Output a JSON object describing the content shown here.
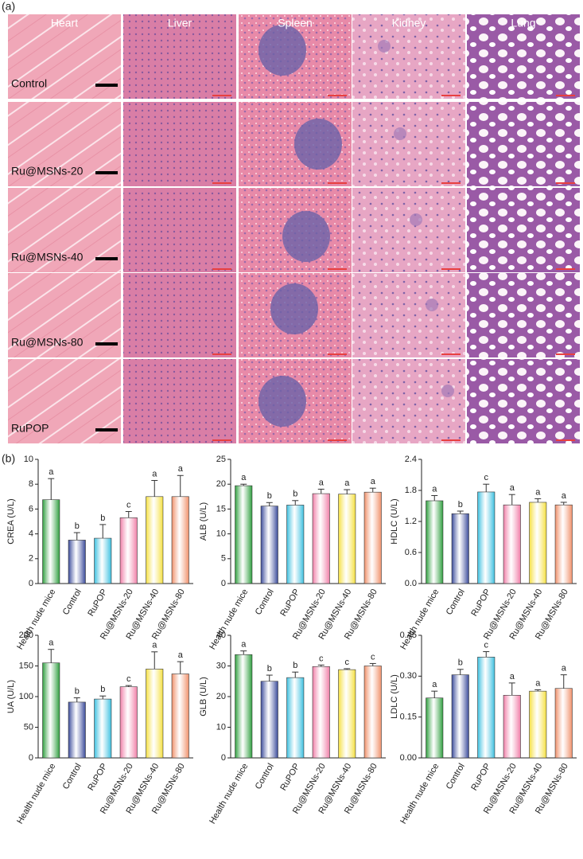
{
  "panel_a": {
    "label": "(a)",
    "columns": [
      "Heart",
      "Liver",
      "Spleen",
      "Kidney",
      "Lung"
    ],
    "rows": [
      "Control",
      "Ru@MSNs-20",
      "Ru@MSNs-40",
      "Ru@MSNs-80",
      "RuPOP"
    ]
  },
  "panel_b": {
    "label": "(b)"
  },
  "chart_data": [
    {
      "type": "bar",
      "ylabel": "CREA (U/L)",
      "categories": [
        "Health nude mice",
        "Control",
        "RuPOP",
        "Ru@MSNs-20",
        "Ru@MSNs-40",
        "Ru@MSNs-80"
      ],
      "values": [
        6.75,
        3.5,
        3.65,
        5.3,
        7.0,
        7.0
      ],
      "errors": [
        1.7,
        0.6,
        1.1,
        0.5,
        1.3,
        1.7
      ],
      "annotations": [
        "a",
        "b",
        "b",
        "c",
        "a",
        "a"
      ],
      "colors": [
        "#2e9e3e",
        "#3a4a9a",
        "#3cc0e0",
        "#f07fa8",
        "#f5e040",
        "#f0906a"
      ],
      "ylim": [
        0,
        10
      ],
      "yticks": [
        0,
        2,
        4,
        6,
        8,
        10
      ]
    },
    {
      "type": "bar",
      "ylabel": "ALB (U/L)",
      "categories": [
        "Health nude mice",
        "Control",
        "RuPOP",
        "Ru@MSNs-20",
        "Ru@MSNs-40",
        "Ru@MSNs-80"
      ],
      "values": [
        19.7,
        15.6,
        15.8,
        18.1,
        18.0,
        18.4
      ],
      "errors": [
        0.3,
        0.7,
        0.9,
        0.9,
        0.9,
        0.8
      ],
      "annotations": [
        "a",
        "b",
        "b",
        "a",
        "a",
        "a"
      ],
      "colors": [
        "#2e9e3e",
        "#3a4a9a",
        "#3cc0e0",
        "#f07fa8",
        "#f5e040",
        "#f0906a"
      ],
      "ylim": [
        0,
        25
      ],
      "yticks": [
        0,
        5,
        10,
        15,
        20,
        25
      ]
    },
    {
      "type": "bar",
      "ylabel": "HDLC (U/L)",
      "categories": [
        "Health nude mice",
        "Control",
        "RuPOP",
        "Ru@MSNs-20",
        "Ru@MSNs-40",
        "Ru@MSNs-80"
      ],
      "values": [
        1.6,
        1.35,
        1.77,
        1.52,
        1.57,
        1.52
      ],
      "errors": [
        0.1,
        0.05,
        0.15,
        0.2,
        0.07,
        0.05
      ],
      "annotations": [
        "a",
        "b",
        "c",
        "a",
        "a",
        "a"
      ],
      "colors": [
        "#2e9e3e",
        "#3a4a9a",
        "#3cc0e0",
        "#f07fa8",
        "#f5e040",
        "#f0906a"
      ],
      "ylim": [
        0,
        2.4
      ],
      "yticks": [
        {
          "value": 0,
          "label": "0.0"
        },
        0.6,
        1.2,
        1.8,
        2.4
      ]
    },
    {
      "type": "bar",
      "ylabel": "UA (U/L)",
      "categories": [
        "Health nude mice",
        "Control",
        "RuPOP",
        "Ru@MSNs-20",
        "Ru@MSNs-40",
        "Ru@MSNs-80"
      ],
      "values": [
        155,
        91,
        96,
        116,
        145,
        137
      ],
      "errors": [
        22,
        7,
        5,
        2,
        28,
        20
      ],
      "annotations": [
        "a",
        "b",
        "b",
        "c",
        "a",
        "a"
      ],
      "colors": [
        "#2e9e3e",
        "#3a4a9a",
        "#3cc0e0",
        "#f07fa8",
        "#f5e040",
        "#f0906a"
      ],
      "ylim": [
        0,
        200
      ],
      "yticks": [
        0,
        50,
        100,
        150,
        200
      ]
    },
    {
      "type": "bar",
      "ylabel": "GLB (U/L)",
      "categories": [
        "Health nude mice",
        "Control",
        "RuPOP",
        "Ru@MSNs-20",
        "Ru@MSNs-40",
        "Ru@MSNs-80"
      ],
      "values": [
        33.7,
        25,
        26.2,
        29.8,
        28.8,
        30
      ],
      "errors": [
        1.2,
        2,
        1.8,
        0.5,
        0.3,
        0.8
      ],
      "annotations": [
        "a",
        "b",
        "b",
        "c",
        "c",
        "c"
      ],
      "colors": [
        "#2e9e3e",
        "#3a4a9a",
        "#3cc0e0",
        "#f07fa8",
        "#f5e040",
        "#f0906a"
      ],
      "ylim": [
        0,
        40
      ],
      "yticks": [
        0,
        10,
        20,
        30,
        40
      ]
    },
    {
      "type": "bar",
      "ylabel": "LDLC (U/L)",
      "categories": [
        "Health nude mice",
        "Control",
        "RuPOP",
        "Ru@MSNs-20",
        "Ru@MSNs-40",
        "Ru@MSNs-80"
      ],
      "values": [
        0.22,
        0.305,
        0.37,
        0.23,
        0.245,
        0.255
      ],
      "errors": [
        0.025,
        0.02,
        0.02,
        0.045,
        0.005,
        0.05
      ],
      "annotations": [
        "a",
        "b",
        "c",
        "a",
        "a",
        "a"
      ],
      "colors": [
        "#2e9e3e",
        "#3a4a9a",
        "#3cc0e0",
        "#f07fa8",
        "#f5e040",
        "#f0906a"
      ],
      "ylim": [
        0,
        0.45
      ],
      "yticks": [
        {
          "value": 0,
          "label": "0.00"
        },
        0.15,
        {
          "value": 0.3,
          "label": "0.30"
        },
        0.45
      ]
    }
  ]
}
